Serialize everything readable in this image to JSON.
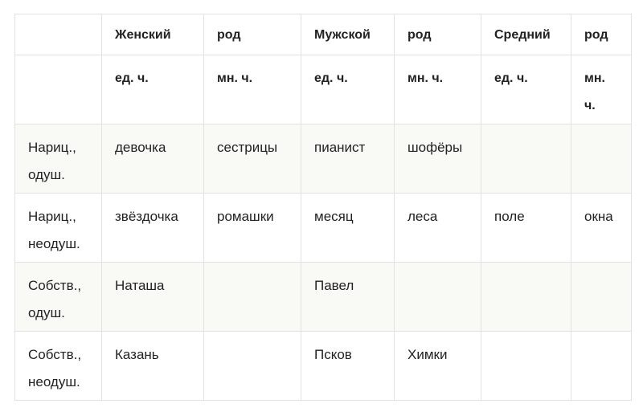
{
  "header_row1": [
    "",
    "Женский",
    "род",
    "Мужской",
    "род",
    "Средний",
    "род"
  ],
  "header_row2": [
    "",
    "ед. ч.",
    "мн. ч.",
    "ед. ч.",
    "мн. ч.",
    "ед. ч.",
    "мн. ч."
  ],
  "rows": [
    [
      "Нариц., одуш.",
      "девочка",
      "сестрицы",
      "пианист",
      "шофёры",
      "",
      ""
    ],
    [
      "Нариц., неодуш.",
      "звёздочка",
      "ромашки",
      "месяц",
      "леса",
      "поле",
      "окна"
    ],
    [
      "Собств., одуш.",
      "Наташа",
      "",
      "Павел",
      "",
      "",
      ""
    ],
    [
      "Собств., неодуш.",
      "Казань",
      "",
      "Псков",
      "Химки",
      "",
      ""
    ]
  ]
}
